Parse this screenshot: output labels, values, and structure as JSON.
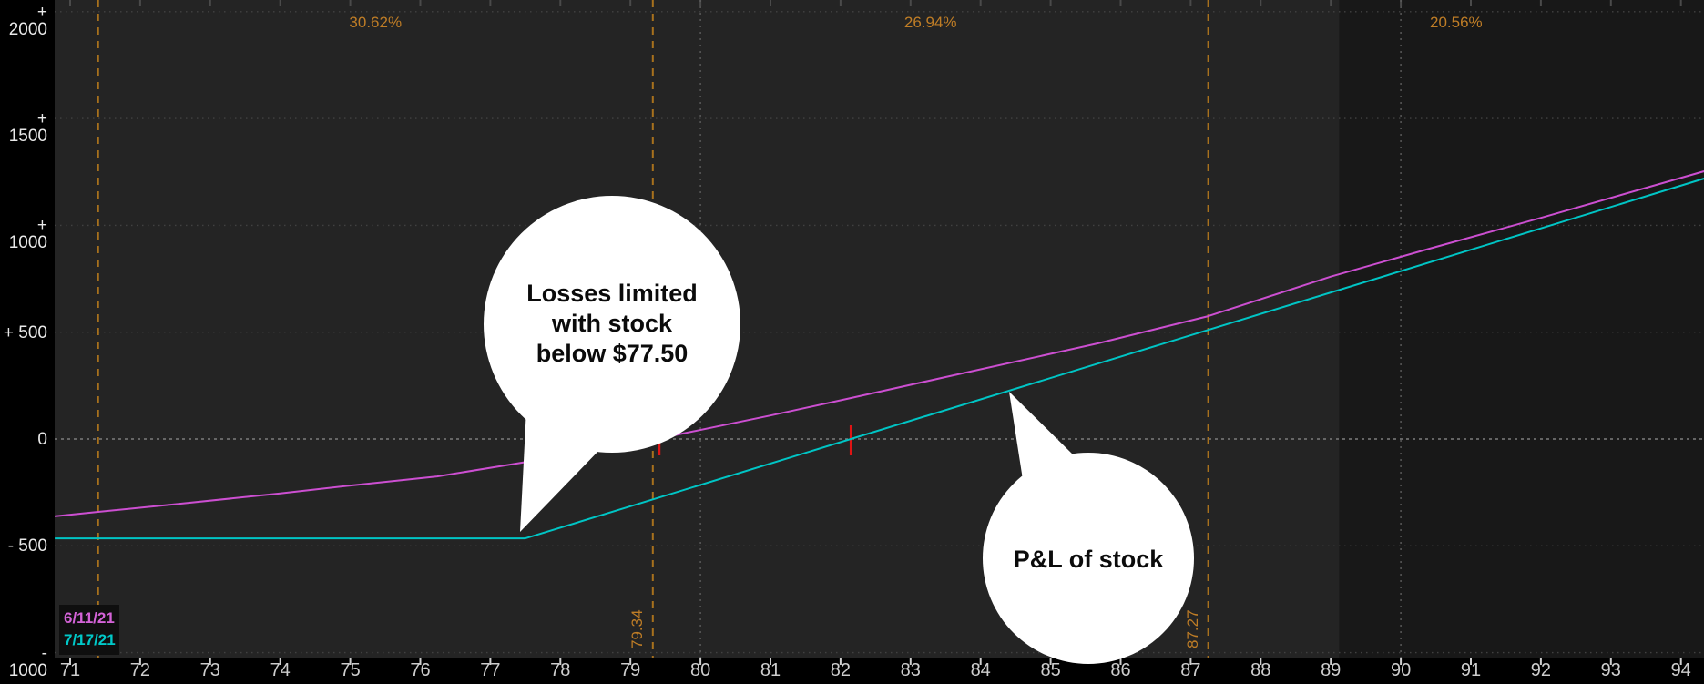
{
  "chart_data": {
    "type": "line",
    "description": "Options risk-profile P&L graph (dark trading-platform style)",
    "x_axis": {
      "min": 70.78,
      "max": 94.33,
      "ticks": [
        71,
        72,
        73,
        74,
        75,
        76,
        77,
        78,
        79,
        80,
        81,
        82,
        83,
        84,
        85,
        86,
        87,
        88,
        89,
        90,
        91,
        92,
        93,
        94
      ]
    },
    "y_axis": {
      "min": -1027,
      "max": 2054,
      "ticks": [
        2000,
        1500,
        1000,
        500,
        0,
        -500,
        -1000
      ],
      "tick_labels": [
        "+ 2000",
        "+ 1500",
        "+ 1000",
        "+ 500",
        "0",
        "- 500",
        "- 1000"
      ]
    },
    "grid": true,
    "series": [
      {
        "name": "6/11/21",
        "color": "#cc4fd1",
        "points": [
          [
            70.78,
            -362
          ],
          [
            71.4,
            -341
          ],
          [
            72.5,
            -305
          ],
          [
            74,
            -255
          ],
          [
            75,
            -218
          ],
          [
            76.24,
            -175
          ],
          [
            77.45,
            -111
          ],
          [
            78.5,
            -50
          ],
          [
            79.62,
            17
          ],
          [
            81,
            110
          ],
          [
            82.15,
            192
          ],
          [
            83.5,
            290
          ],
          [
            85.68,
            448
          ],
          [
            87.25,
            575
          ],
          [
            89,
            760
          ],
          [
            90.41,
            891
          ],
          [
            92,
            1035
          ],
          [
            94.33,
            1253
          ]
        ]
      },
      {
        "name": "7/17/21",
        "color": "#00c5c5",
        "points": [
          [
            70.78,
            -465
          ],
          [
            77.5,
            -465
          ],
          [
            94.33,
            1219
          ]
        ]
      }
    ],
    "std_dev_lines": [
      {
        "x": 71.4,
        "label": ""
      },
      {
        "x": 79.32,
        "label": "79.34"
      },
      {
        "x": 87.25,
        "label": "87.27"
      }
    ],
    "probability_labels": [
      {
        "text": "30.62%",
        "between": [
          71.4,
          79.32
        ]
      },
      {
        "text": "26.94%",
        "between": [
          79.32,
          87.25
        ]
      },
      {
        "text": "20.56%",
        "between": [
          87.25,
          94.33
        ]
      }
    ],
    "slice_lines": [
      80.0,
      90.0
    ],
    "breakeven_ticks": [
      79.41,
      82.15
    ],
    "shaded_region_start_x": 89.12,
    "colors": {
      "plot_bg": "#242424",
      "shaded_bg": "#181818",
      "axis_bg": "#000000",
      "grid": "#414141",
      "zero_line": "#7d7d7d",
      "std_dev": "#a8711d",
      "breakeven": "#e01414",
      "slice": "#5d5d5d",
      "tick_text": "#cdcdcd"
    }
  },
  "legend": {
    "items": [
      {
        "label": "6/11/21",
        "color": "#d463d8"
      },
      {
        "label": "7/17/21",
        "color": "#00c9c9"
      }
    ]
  },
  "annotations": {
    "bubble1": {
      "line1": "Losses limited",
      "line2": "with stock",
      "line3": "below $77.50"
    },
    "bubble2": {
      "line1": "P&L of stock"
    }
  }
}
